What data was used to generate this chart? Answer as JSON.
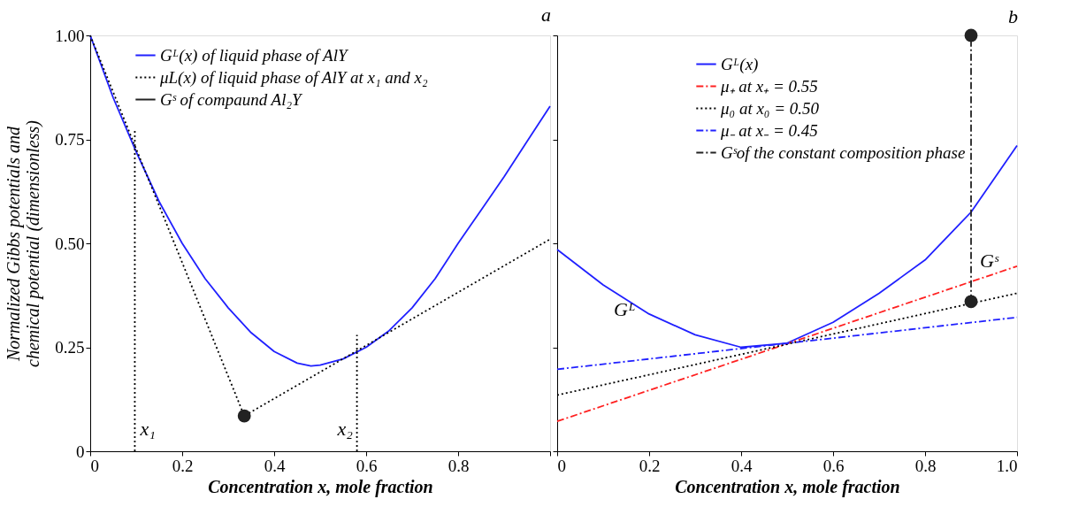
{
  "chart_data": [
    {
      "type": "line",
      "title": "a",
      "xlabel": "Concentration x, mole fraction",
      "ylabel": "Normalized Gibbs potentials and\nchemical potential (dimensionless)",
      "xlim": [
        0,
        1
      ],
      "xticks": [
        0,
        0.2,
        0.4,
        0.6,
        0.8,
        {
          "value": 1,
          "label": null
        }
      ],
      "ylim": [
        0,
        1
      ],
      "yticks": [
        0,
        0.25,
        {
          "value": 0.5,
          "label": "0.50"
        },
        0.75,
        {
          "value": 1,
          "label": "1.00"
        }
      ],
      "grid": false,
      "legend": "top left",
      "marker": "none",
      "series": [
        {
          "name": "Gᴸ(x) of liquid phase of AlY",
          "color": "#2020ff",
          "line_style": "solid",
          "x": [
            0,
            0.05,
            0.1,
            0.15,
            0.2,
            0.25,
            0.3,
            0.35,
            0.4,
            0.45,
            0.48,
            0.5,
            0.55,
            0.6,
            0.65,
            0.7,
            0.75,
            0.8,
            0.85,
            0.9,
            0.95,
            1.0
          ],
          "values": [
            1.0,
            0.85,
            0.72,
            0.6,
            0.5,
            0.415,
            0.345,
            0.285,
            0.24,
            0.212,
            0.205,
            0.207,
            0.222,
            0.25,
            0.29,
            0.345,
            0.415,
            0.5,
            0.58,
            0.66,
            0.745,
            0.83
          ]
        },
        {
          "name": "μL(x) of liquid phase of AlY at x₁ and x₂",
          "color": "#000000",
          "line_style": "dotted",
          "x": [
            0,
            0.335,
            1.0
          ],
          "values": [
            1.0,
            0.085,
            0.51
          ]
        },
        {
          "color": "#000000",
          "line_style": "dotted",
          "x": [
            0.097,
            0.097
          ],
          "values": [
            0,
            0.77
          ]
        },
        {
          "color": "#000000",
          "line_style": "dotted",
          "x": [
            0.58,
            0.58
          ],
          "values": [
            0,
            0.28
          ]
        },
        {
          "name": "Gˢ of compaund Al₂Y",
          "type": "scatter",
          "marker": "circle",
          "color": "#222222",
          "x": [
            0.335
          ],
          "values": [
            0.085
          ]
        }
      ],
      "annotations": [
        {
          "text": "x₁",
          "x": 0.097,
          "y": 0
        },
        {
          "text": "x₂",
          "x": 0.58,
          "y": 0
        }
      ]
    },
    {
      "type": "line",
      "title": "b",
      "xlabel": "Concentration x, mole fraction",
      "xlim": [
        0,
        1
      ],
      "xticks": [
        0,
        0.2,
        0.4,
        0.6,
        0.8,
        {
          "value": 1,
          "label": "1.0"
        }
      ],
      "ylim": [
        0,
        1
      ],
      "yticks": [
        {
          "value": 0,
          "label": null
        },
        {
          "value": 0.25,
          "label": null
        },
        {
          "value": 0.5,
          "label": null
        },
        {
          "value": 0.75,
          "label": null
        },
        {
          "value": 1,
          "label": null
        }
      ],
      "tick_labels": "x",
      "grid": false,
      "legend": "top",
      "marker": "none",
      "series": [
        {
          "name": "Gᴸ(x)",
          "color": "#2020ff",
          "line_style": "solid",
          "x": [
            0,
            0.1,
            0.2,
            0.3,
            0.4,
            0.5,
            0.6,
            0.7,
            0.8,
            0.9,
            1.0
          ],
          "values": [
            0.485,
            0.4,
            0.33,
            0.28,
            0.25,
            0.26,
            0.31,
            0.38,
            0.46,
            0.575,
            0.735
          ]
        },
        {
          "name": "μ₊ at x₊ = 0.55",
          "color": "#ff2020",
          "line_style": "dashdot",
          "x": [
            0,
            1
          ],
          "values": [
            0.072,
            0.445
          ]
        },
        {
          "name": "μ₀ at x₀ = 0.50",
          "color": "#000000",
          "line_style": "dotted",
          "x": [
            0,
            1
          ],
          "values": [
            0.135,
            0.38
          ]
        },
        {
          "name": "μ₋ at x₋ = 0.45",
          "color": "#2020ff",
          "line_style": "dashdot",
          "x": [
            0,
            1
          ],
          "values": [
            0.197,
            0.322
          ]
        },
        {
          "name": "Gˢof the constant composition phase",
          "color": "#222222",
          "line_style": "dashdot",
          "marker": "circle",
          "x": [
            0.9,
            0.9
          ],
          "values": [
            0.36,
            1.0
          ]
        }
      ],
      "annotations": [
        {
          "text": "Gᴸ",
          "x": 0.1,
          "y": 0.4
        },
        {
          "text": "Gˢ",
          "x": 0.9,
          "y": 0.41
        }
      ]
    }
  ]
}
